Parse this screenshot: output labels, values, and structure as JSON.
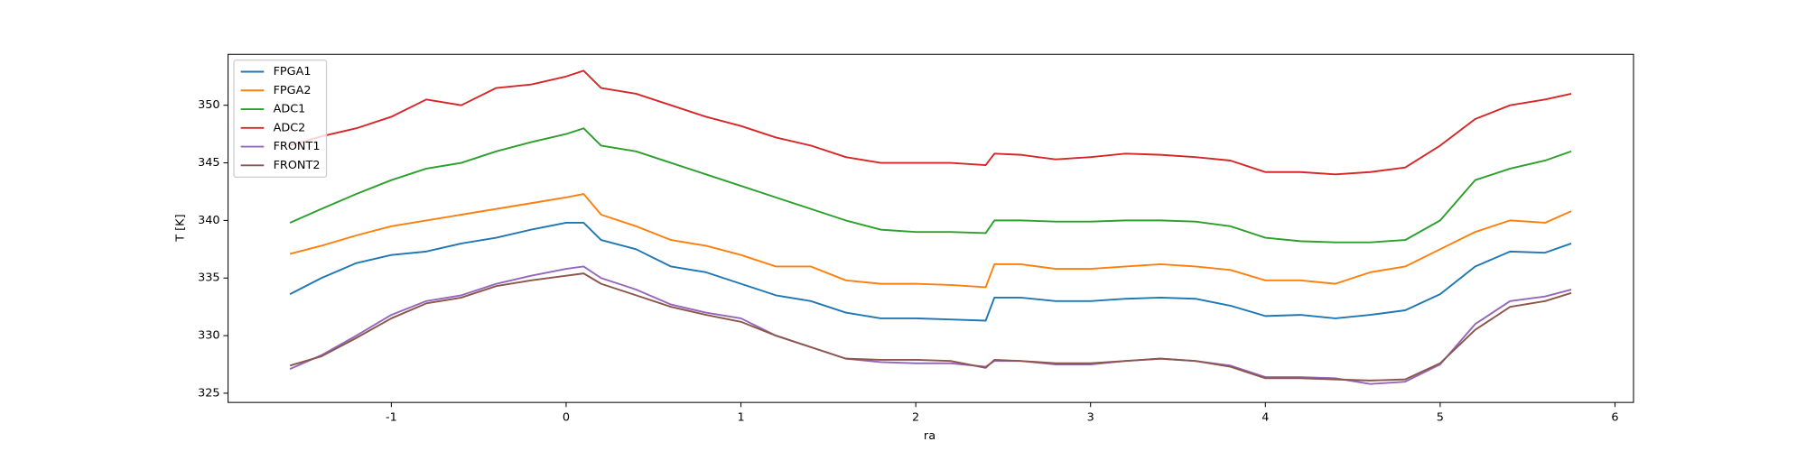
{
  "chart_data": {
    "type": "line",
    "x_label": "ra",
    "y_label": "T [K]",
    "x": [
      -1.58,
      -1.4,
      -1.2,
      -1.0,
      -0.8,
      -0.6,
      -0.4,
      -0.2,
      0,
      0.1,
      0.2,
      0.4,
      0.6,
      0.8,
      1.0,
      1.2,
      1.4,
      1.6,
      1.8,
      2.0,
      2.2,
      2.4,
      2.45,
      2.6,
      2.8,
      3.0,
      3.2,
      3.4,
      3.6,
      3.8,
      4.0,
      4.2,
      4.4,
      4.6,
      4.8,
      5.0,
      5.2,
      5.4,
      5.6,
      5.75
    ],
    "series": [
      {
        "name": "FPGA1",
        "color": "#1f77b4",
        "values": [
          333.6,
          335,
          336.3,
          337,
          337.3,
          338,
          338.5,
          339.2,
          339.8,
          339.8,
          338.3,
          337.5,
          336,
          335.5,
          334.5,
          333.5,
          333,
          332,
          331.5,
          331.5,
          331.4,
          331.3,
          333.3,
          333.3,
          333,
          333,
          333.2,
          333.3,
          333.2,
          332.6,
          331.7,
          331.8,
          331.5,
          331.8,
          332.2,
          333.6,
          336,
          337.3,
          337.2,
          338
        ]
      },
      {
        "name": "FPGA2",
        "color": "#ff7f0e",
        "values": [
          337.1,
          337.8,
          338.7,
          339.5,
          340,
          340.5,
          341,
          341.5,
          342,
          342.3,
          340.5,
          339.5,
          338.3,
          337.8,
          337,
          336,
          336,
          334.8,
          334.5,
          334.5,
          334.4,
          334.2,
          336.2,
          336.2,
          335.8,
          335.8,
          336,
          336.2,
          336,
          335.7,
          334.8,
          334.8,
          334.5,
          335.5,
          336,
          337.5,
          339,
          340,
          339.8,
          340.8
        ]
      },
      {
        "name": "ADC1",
        "color": "#2ca02c",
        "values": [
          339.8,
          341,
          342.3,
          343.5,
          344.5,
          345,
          346,
          346.8,
          347.5,
          348,
          346.5,
          346,
          345,
          344,
          343,
          342,
          341,
          340,
          339.2,
          339,
          339,
          338.9,
          340,
          340,
          339.9,
          339.9,
          340,
          340,
          339.9,
          339.5,
          338.5,
          338.2,
          338.1,
          338.1,
          338.3,
          340,
          343.5,
          344.5,
          345.2,
          346
        ]
      },
      {
        "name": "ADC2",
        "color": "#d62728",
        "values": [
          346.5,
          347.3,
          348,
          349,
          350.5,
          350,
          351.5,
          351.8,
          352.5,
          353,
          351.5,
          351,
          350,
          349,
          348.2,
          347.2,
          346.5,
          345.5,
          345,
          345,
          345,
          344.8,
          345.8,
          345.7,
          345.3,
          345.5,
          345.8,
          345.7,
          345.5,
          345.2,
          344.2,
          344.2,
          344,
          344.2,
          344.6,
          346.5,
          348.8,
          350,
          350.5,
          351
        ]
      },
      {
        "name": "FRONT1",
        "color": "#9467bd",
        "values": [
          327.1,
          328.3,
          330,
          331.8,
          333,
          333.5,
          334.5,
          335.2,
          335.8,
          336,
          335,
          334,
          332.7,
          332,
          331.5,
          330,
          329,
          328,
          327.7,
          327.6,
          327.6,
          327.3,
          327.8,
          327.8,
          327.5,
          327.5,
          327.8,
          328,
          327.8,
          327.4,
          326.4,
          326.4,
          326.3,
          325.8,
          326,
          327.5,
          331,
          333,
          333.4,
          334
        ]
      },
      {
        "name": "FRONT2",
        "color": "#8c564b",
        "values": [
          327.4,
          328.2,
          329.8,
          331.5,
          332.8,
          333.3,
          334.3,
          334.8,
          335.2,
          335.4,
          334.5,
          333.5,
          332.5,
          331.8,
          331.2,
          330,
          329,
          328,
          327.9,
          327.9,
          327.8,
          327.2,
          327.9,
          327.8,
          327.6,
          327.6,
          327.8,
          328,
          327.8,
          327.3,
          326.3,
          326.3,
          326.2,
          326.1,
          326.2,
          327.6,
          330.5,
          332.5,
          333,
          333.7
        ]
      }
    ],
    "xlim": [
      -1.934,
      6.106
    ],
    "xticks": [
      -1,
      0,
      1,
      2,
      3,
      4,
      5,
      6
    ],
    "ylim": [
      324.2,
      354.42
    ],
    "yticks": [
      325,
      330,
      335,
      340,
      345,
      350
    ],
    "legend": "upper left"
  }
}
